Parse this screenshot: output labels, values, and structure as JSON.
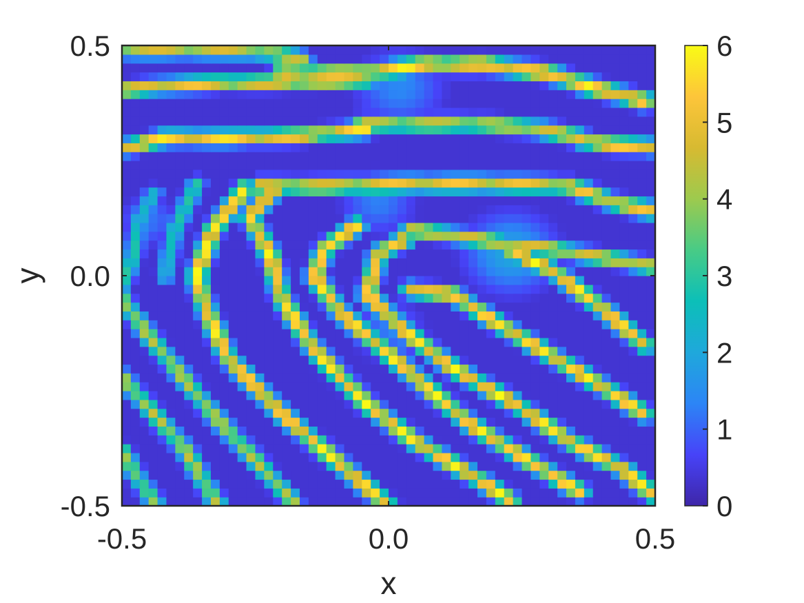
{
  "chart_data": {
    "type": "heatmap",
    "title": "",
    "xlabel": "x",
    "ylabel": "y",
    "xlim": [
      -0.5,
      0.5
    ],
    "ylim": [
      -0.5,
      0.5
    ],
    "x_ticks": [
      {
        "value": -0.5,
        "label": "-0.5"
      },
      {
        "value": 0.0,
        "label": "0.0"
      },
      {
        "value": 0.5,
        "label": "0.5"
      }
    ],
    "y_ticks": [
      {
        "value": -0.5,
        "label": "-0.5"
      },
      {
        "value": 0.0,
        "label": "0.0"
      },
      {
        "value": 0.5,
        "label": "0.5"
      }
    ],
    "grid": false,
    "colormap": "parula",
    "colormap_stops": [
      "#3e26a8",
      "#4743f8",
      "#2c85f6",
      "#1fa8db",
      "#0cbfb8",
      "#48cb86",
      "#9dca4e",
      "#d7ba31",
      "#fdc53a",
      "#f9fb15"
    ],
    "colorbar": {
      "position": "right",
      "range": [
        0,
        6
      ],
      "ticks": [
        {
          "value": 0,
          "label": "0"
        },
        {
          "value": 1,
          "label": "1"
        },
        {
          "value": 2,
          "label": "2"
        },
        {
          "value": 3,
          "label": "3"
        },
        {
          "value": 4,
          "label": "4"
        },
        {
          "value": 5,
          "label": "5"
        },
        {
          "value": 6,
          "label": "6"
        }
      ]
    },
    "grid_size": {
      "nx": 60,
      "ny": 52
    },
    "background_value": 0.35,
    "curves": [
      {
        "points": [
          [
            -0.5,
            0.49
          ],
          [
            -0.4,
            0.49
          ],
          [
            -0.32,
            0.49
          ],
          [
            -0.22,
            0.485
          ],
          [
            -0.16,
            0.47
          ]
        ],
        "peak": 4.8,
        "width": 0.012
      },
      {
        "points": [
          [
            -0.2,
            0.44
          ],
          [
            -0.05,
            0.44
          ],
          [
            0.07,
            0.46
          ],
          [
            0.18,
            0.46
          ],
          [
            0.3,
            0.44
          ],
          [
            0.38,
            0.41
          ],
          [
            0.48,
            0.38
          ]
        ],
        "peak": 6.0,
        "width": 0.013
      },
      {
        "points": [
          [
            -0.49,
            0.405
          ],
          [
            -0.4,
            0.415
          ],
          [
            -0.3,
            0.42
          ],
          [
            -0.2,
            0.42
          ],
          [
            -0.04,
            0.425
          ]
        ],
        "peak": 5.5,
        "width": 0.012
      },
      {
        "points": [
          [
            -0.05,
            0.33
          ],
          [
            0.07,
            0.33
          ],
          [
            0.18,
            0.33
          ],
          [
            0.28,
            0.32
          ],
          [
            0.36,
            0.3
          ]
        ],
        "peak": 5.0,
        "width": 0.013
      },
      {
        "points": [
          [
            -0.49,
            0.28
          ],
          [
            -0.42,
            0.3
          ],
          [
            -0.3,
            0.3
          ],
          [
            -0.16,
            0.305
          ],
          [
            -0.04,
            0.32
          ]
        ],
        "peak": 5.8,
        "width": 0.012
      },
      {
        "points": [
          [
            0.36,
            0.295
          ],
          [
            0.42,
            0.285
          ],
          [
            0.5,
            0.28
          ]
        ],
        "peak": 6.0,
        "width": 0.012
      },
      {
        "points": [
          [
            -0.24,
            0.195
          ],
          [
            -0.1,
            0.195
          ],
          [
            0.05,
            0.2
          ],
          [
            0.2,
            0.2
          ],
          [
            0.34,
            0.195
          ],
          [
            0.42,
            0.16
          ],
          [
            0.5,
            0.14
          ]
        ],
        "peak": 5.4,
        "width": 0.013
      },
      {
        "points": [
          [
            0.04,
            0.1
          ],
          [
            0.14,
            0.085
          ],
          [
            0.22,
            0.07
          ],
          [
            0.3,
            0.06
          ],
          [
            0.4,
            0.04
          ],
          [
            0.5,
            0.02
          ]
        ],
        "peak": 5.2,
        "width": 0.012
      },
      {
        "points": [
          [
            -0.44,
            0.18
          ],
          [
            -0.47,
            0.12
          ],
          [
            -0.48,
            0.04
          ],
          [
            -0.5,
            -0.02
          ]
        ],
        "peak": 3.0,
        "width": 0.012
      },
      {
        "points": [
          [
            -0.36,
            0.2
          ],
          [
            -0.4,
            0.1
          ],
          [
            -0.42,
            0.0
          ]
        ],
        "peak": 3.0,
        "width": 0.012
      },
      {
        "points": [
          [
            -0.27,
            0.19
          ],
          [
            -0.33,
            0.1
          ],
          [
            -0.36,
            0.0
          ],
          [
            -0.34,
            -0.08
          ],
          [
            -0.3,
            -0.18
          ],
          [
            -0.2,
            -0.3
          ],
          [
            -0.1,
            -0.4
          ],
          [
            0.0,
            -0.5
          ]
        ],
        "peak": 6.0,
        "width": 0.012
      },
      {
        "points": [
          [
            -0.21,
            0.19
          ],
          [
            -0.26,
            0.13
          ],
          [
            -0.22,
            0.04
          ],
          [
            -0.2,
            -0.05
          ],
          [
            -0.14,
            -0.16
          ],
          [
            -0.04,
            -0.28
          ],
          [
            0.05,
            -0.36
          ],
          [
            0.18,
            -0.45
          ],
          [
            0.23,
            -0.49
          ]
        ],
        "peak": 6.0,
        "width": 0.012
      },
      {
        "points": [
          [
            -0.06,
            0.11
          ],
          [
            -0.12,
            0.06
          ],
          [
            -0.14,
            0.0
          ],
          [
            -0.09,
            -0.08
          ],
          [
            -0.02,
            -0.15
          ],
          [
            0.05,
            -0.22
          ],
          [
            0.15,
            -0.32
          ],
          [
            0.26,
            -0.4
          ],
          [
            0.36,
            -0.47
          ]
        ],
        "peak": 6.0,
        "width": 0.012
      },
      {
        "points": [
          [
            0.03,
            0.08
          ],
          [
            -0.02,
            0.05
          ],
          [
            -0.04,
            -0.04
          ],
          [
            0.03,
            -0.12
          ],
          [
            0.12,
            -0.2
          ],
          [
            0.24,
            -0.28
          ],
          [
            0.34,
            -0.36
          ],
          [
            0.44,
            -0.42
          ],
          [
            0.5,
            -0.48
          ]
        ],
        "peak": 6.0,
        "width": 0.012
      },
      {
        "points": [
          [
            0.04,
            -0.03
          ],
          [
            0.12,
            -0.04
          ],
          [
            0.2,
            -0.1
          ],
          [
            0.3,
            -0.17
          ],
          [
            0.4,
            -0.24
          ],
          [
            0.48,
            -0.3
          ]
        ],
        "peak": 6.0,
        "width": 0.012
      },
      {
        "points": [
          [
            0.22,
            0.06
          ],
          [
            0.31,
            0.01
          ],
          [
            0.4,
            -0.07
          ],
          [
            0.48,
            -0.15
          ]
        ],
        "peak": 6.0,
        "width": 0.012
      },
      {
        "points": [
          [
            -0.5,
            -0.05
          ],
          [
            -0.45,
            -0.13
          ],
          [
            -0.4,
            -0.2
          ],
          [
            -0.33,
            -0.3
          ],
          [
            -0.25,
            -0.4
          ],
          [
            -0.18,
            -0.49
          ]
        ],
        "peak": 4.5,
        "width": 0.012
      },
      {
        "points": [
          [
            -0.5,
            -0.22
          ],
          [
            -0.44,
            -0.3
          ],
          [
            -0.38,
            -0.38
          ],
          [
            -0.34,
            -0.46
          ],
          [
            -0.32,
            -0.5
          ]
        ],
        "peak": 4.5,
        "width": 0.012
      },
      {
        "points": [
          [
            -0.5,
            -0.38
          ],
          [
            -0.47,
            -0.44
          ],
          [
            -0.44,
            -0.49
          ]
        ],
        "peak": 4.0,
        "width": 0.012
      }
    ],
    "diffuse_blobs": [
      {
        "center": [
          0.23,
          0.05
        ],
        "radius": 0.06,
        "value": 2.0
      },
      {
        "center": [
          -0.02,
          0.16
        ],
        "radius": 0.05,
        "value": 1.3
      },
      {
        "center": [
          0.02,
          0.41
        ],
        "radius": 0.06,
        "value": 1.4
      },
      {
        "center": [
          -0.45,
          0.12
        ],
        "radius": 0.04,
        "value": 1.2
      },
      {
        "center": [
          0.0,
          -0.12
        ],
        "radius": 0.05,
        "value": 1.2
      }
    ]
  }
}
